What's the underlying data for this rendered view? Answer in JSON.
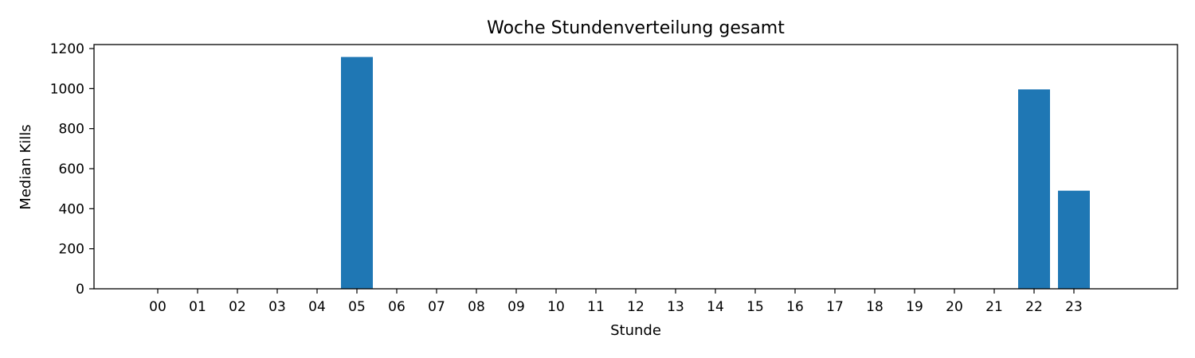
{
  "chart_data": {
    "type": "bar",
    "title": "Woche Stundenverteilung gesamt",
    "xlabel": "Stunde",
    "ylabel": "Median Kills",
    "categories": [
      "00",
      "01",
      "02",
      "03",
      "04",
      "05",
      "06",
      "07",
      "08",
      "09",
      "10",
      "11",
      "12",
      "13",
      "14",
      "15",
      "16",
      "17",
      "18",
      "19",
      "20",
      "21",
      "22",
      "23"
    ],
    "values": [
      0,
      0,
      0,
      0,
      0,
      1158,
      0,
      0,
      0,
      0,
      0,
      0,
      0,
      0,
      0,
      0,
      0,
      0,
      0,
      0,
      0,
      0,
      996,
      490
    ],
    "ylim": [
      0,
      1220
    ],
    "yticks": [
      0,
      200,
      400,
      600,
      800,
      1000,
      1200
    ],
    "grid": false,
    "bar_color": "#1f77b4"
  }
}
